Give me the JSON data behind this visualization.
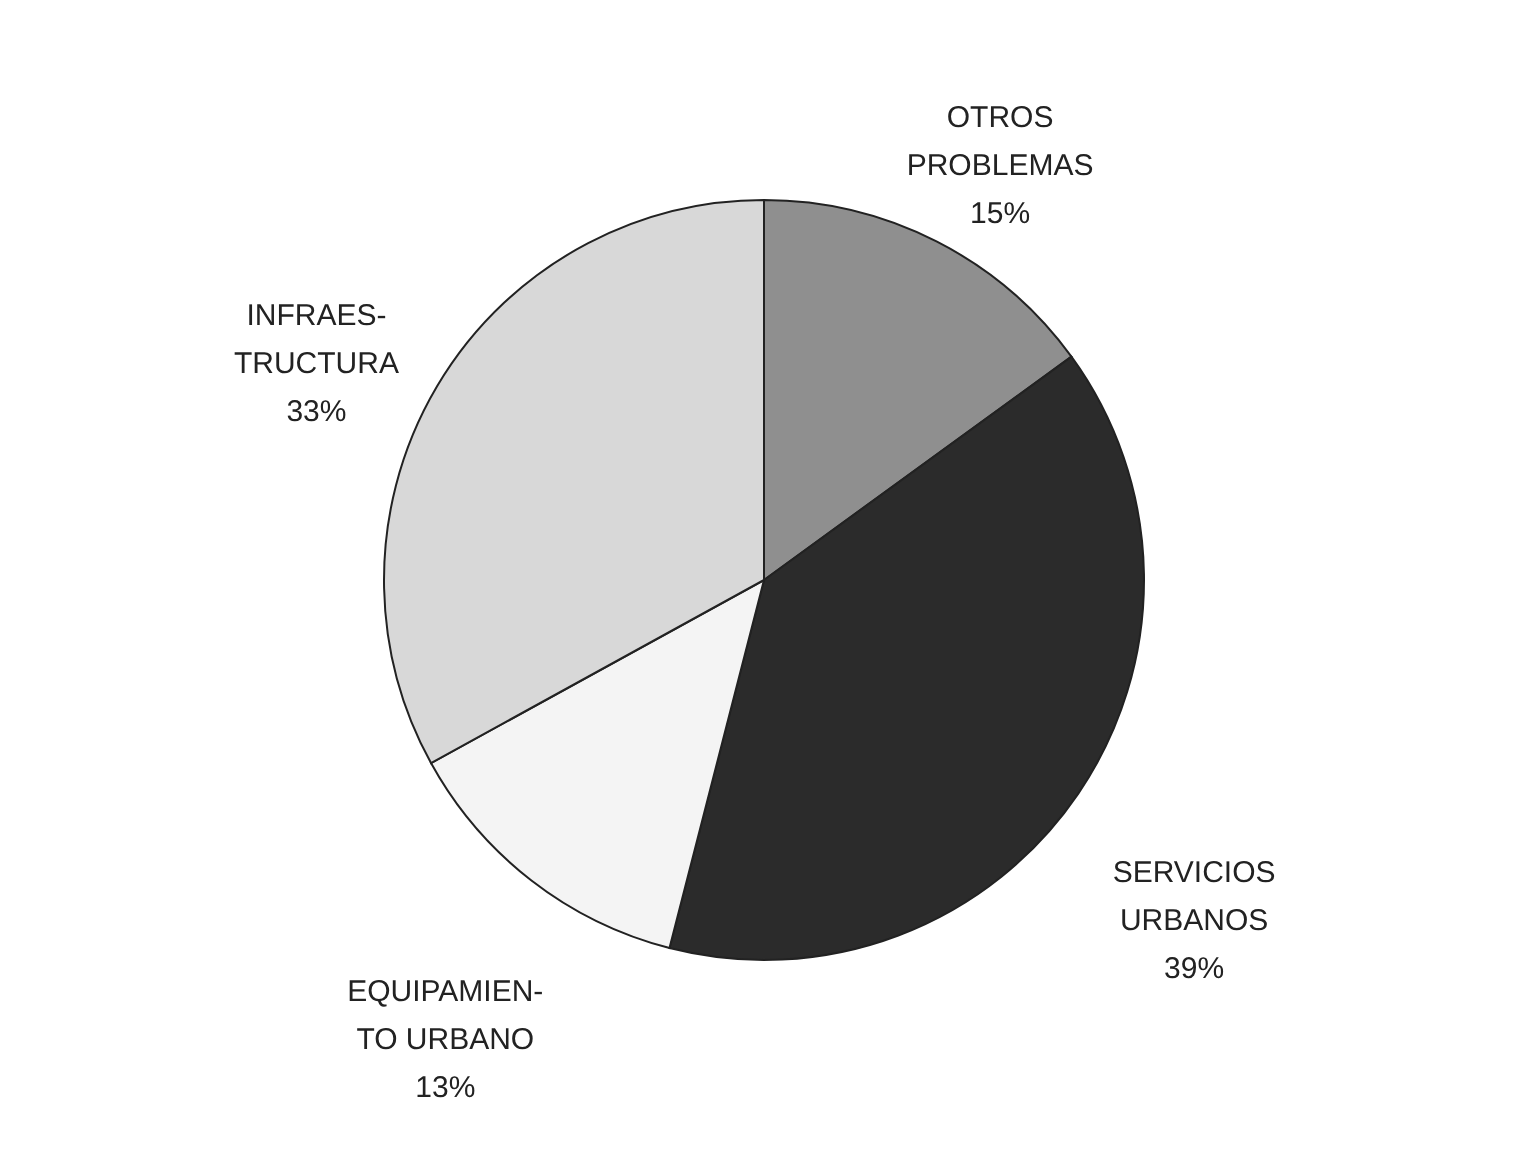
{
  "chart_data": {
    "type": "pie",
    "categories": [
      "OTROS\nPROBLEMAS",
      "SERVICIOS\nURBANOS",
      "EQUIPAMIEN-\nTO URBANO",
      "INFRAES-\nTRUCTURA"
    ],
    "values": [
      15,
      39,
      13,
      33
    ],
    "value_labels": [
      "15%",
      "39%",
      "13%",
      "33%"
    ],
    "colors": [
      "#8f8f8f",
      "#2b2b2b",
      "#f4f4f4",
      "#d8d8d8"
    ]
  }
}
